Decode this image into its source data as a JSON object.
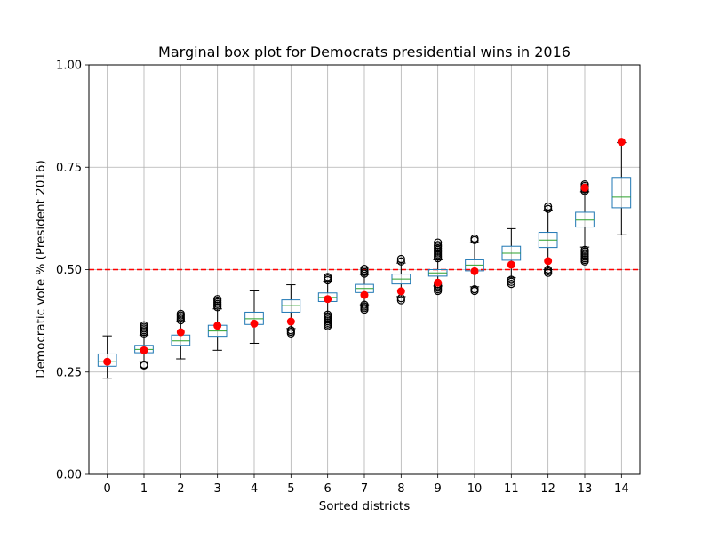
{
  "chart_data": {
    "type": "box",
    "title": "Marginal box plot for Democrats presidential wins in 2016",
    "xlabel": "Sorted districts",
    "ylabel": "Democratic vote % (President 2016)",
    "categories": [
      "0",
      "1",
      "2",
      "3",
      "4",
      "5",
      "6",
      "7",
      "8",
      "9",
      "10",
      "11",
      "12",
      "13",
      "14"
    ],
    "ylim": [
      0.0,
      1.0
    ],
    "yticks": [
      "0.00",
      "0.25",
      "0.50",
      "0.75",
      "1.00"
    ],
    "grid": true,
    "reference_line": {
      "y": 0.5,
      "style": "dashed",
      "color": "#ff0000"
    },
    "colors": {
      "box": "#1f77b4",
      "median": "#2ca02c",
      "point": "#ff0000",
      "outlier": "#000000",
      "grid": "#b0b0b0"
    },
    "boxes": [
      {
        "q1": 0.264,
        "median": 0.275,
        "q3": 0.294,
        "whisker_low": 0.235,
        "whisker_high": 0.338,
        "outliers": [],
        "point": 0.275
      },
      {
        "q1": 0.297,
        "median": 0.305,
        "q3": 0.315,
        "whisker_low": 0.275,
        "whisker_high": 0.34,
        "outliers": [
          0.266,
          0.268,
          0.344,
          0.348,
          0.352,
          0.356,
          0.36,
          0.364
        ],
        "point": 0.303
      },
      {
        "q1": 0.315,
        "median": 0.326,
        "q3": 0.34,
        "whisker_low": 0.282,
        "whisker_high": 0.373,
        "outliers": [
          0.376,
          0.38,
          0.384,
          0.388,
          0.392
        ],
        "point": 0.347
      },
      {
        "q1": 0.337,
        "median": 0.35,
        "q3": 0.364,
        "whisker_low": 0.303,
        "whisker_high": 0.404,
        "outliers": [
          0.408,
          0.412,
          0.416,
          0.42,
          0.424,
          0.428
        ],
        "point": 0.363
      },
      {
        "q1": 0.366,
        "median": 0.38,
        "q3": 0.396,
        "whisker_low": 0.32,
        "whisker_high": 0.448,
        "outliers": [],
        "point": 0.368
      },
      {
        "q1": 0.396,
        "median": 0.412,
        "q3": 0.426,
        "whisker_low": 0.356,
        "whisker_high": 0.463,
        "outliers": [
          0.344,
          0.348,
          0.352
        ],
        "point": 0.373
      },
      {
        "q1": 0.422,
        "median": 0.432,
        "q3": 0.443,
        "whisker_low": 0.392,
        "whisker_high": 0.472,
        "outliers": [
          0.362,
          0.366,
          0.37,
          0.374,
          0.378,
          0.382,
          0.386,
          0.39,
          0.474,
          0.478,
          0.482
        ],
        "point": 0.428
      },
      {
        "q1": 0.444,
        "median": 0.454,
        "q3": 0.464,
        "whisker_low": 0.414,
        "whisker_high": 0.488,
        "outliers": [
          0.402,
          0.406,
          0.41,
          0.414,
          0.49,
          0.494,
          0.498,
          0.502
        ],
        "point": 0.438
      },
      {
        "q1": 0.465,
        "median": 0.477,
        "q3": 0.489,
        "whisker_low": 0.434,
        "whisker_high": 0.516,
        "outliers": [
          0.425,
          0.43,
          0.52,
          0.526
        ],
        "point": 0.447
      },
      {
        "q1": 0.484,
        "median": 0.492,
        "q3": 0.5,
        "whisker_low": 0.46,
        "whisker_high": 0.524,
        "outliers": [
          0.448,
          0.452,
          0.456,
          0.46,
          0.464,
          0.528,
          0.532,
          0.536,
          0.54,
          0.544,
          0.548,
          0.552,
          0.556,
          0.56,
          0.566
        ],
        "point": 0.468
      },
      {
        "q1": 0.497,
        "median": 0.511,
        "q3": 0.524,
        "whisker_low": 0.458,
        "whisker_high": 0.566,
        "outliers": [
          0.448,
          0.452,
          0.572,
          0.576
        ],
        "point": 0.496
      },
      {
        "q1": 0.523,
        "median": 0.54,
        "q3": 0.557,
        "whisker_low": 0.48,
        "whisker_high": 0.6,
        "outliers": [
          0.465,
          0.47,
          0.475
        ],
        "point": 0.512
      },
      {
        "q1": 0.554,
        "median": 0.572,
        "q3": 0.591,
        "whisker_low": 0.5,
        "whisker_high": 0.645,
        "outliers": [
          0.492,
          0.496,
          0.5,
          0.648,
          0.654
        ],
        "point": 0.521
      },
      {
        "q1": 0.604,
        "median": 0.621,
        "q3": 0.64,
        "whisker_low": 0.555,
        "whisker_high": 0.69,
        "outliers": [
          0.52,
          0.524,
          0.528,
          0.532,
          0.536,
          0.54,
          0.544,
          0.548,
          0.692,
          0.696,
          0.7,
          0.704,
          0.708
        ],
        "point": 0.7
      },
      {
        "q1": 0.651,
        "median": 0.677,
        "q3": 0.725,
        "whisker_low": 0.585,
        "whisker_high": 0.81,
        "outliers": [],
        "point": 0.812
      }
    ]
  }
}
